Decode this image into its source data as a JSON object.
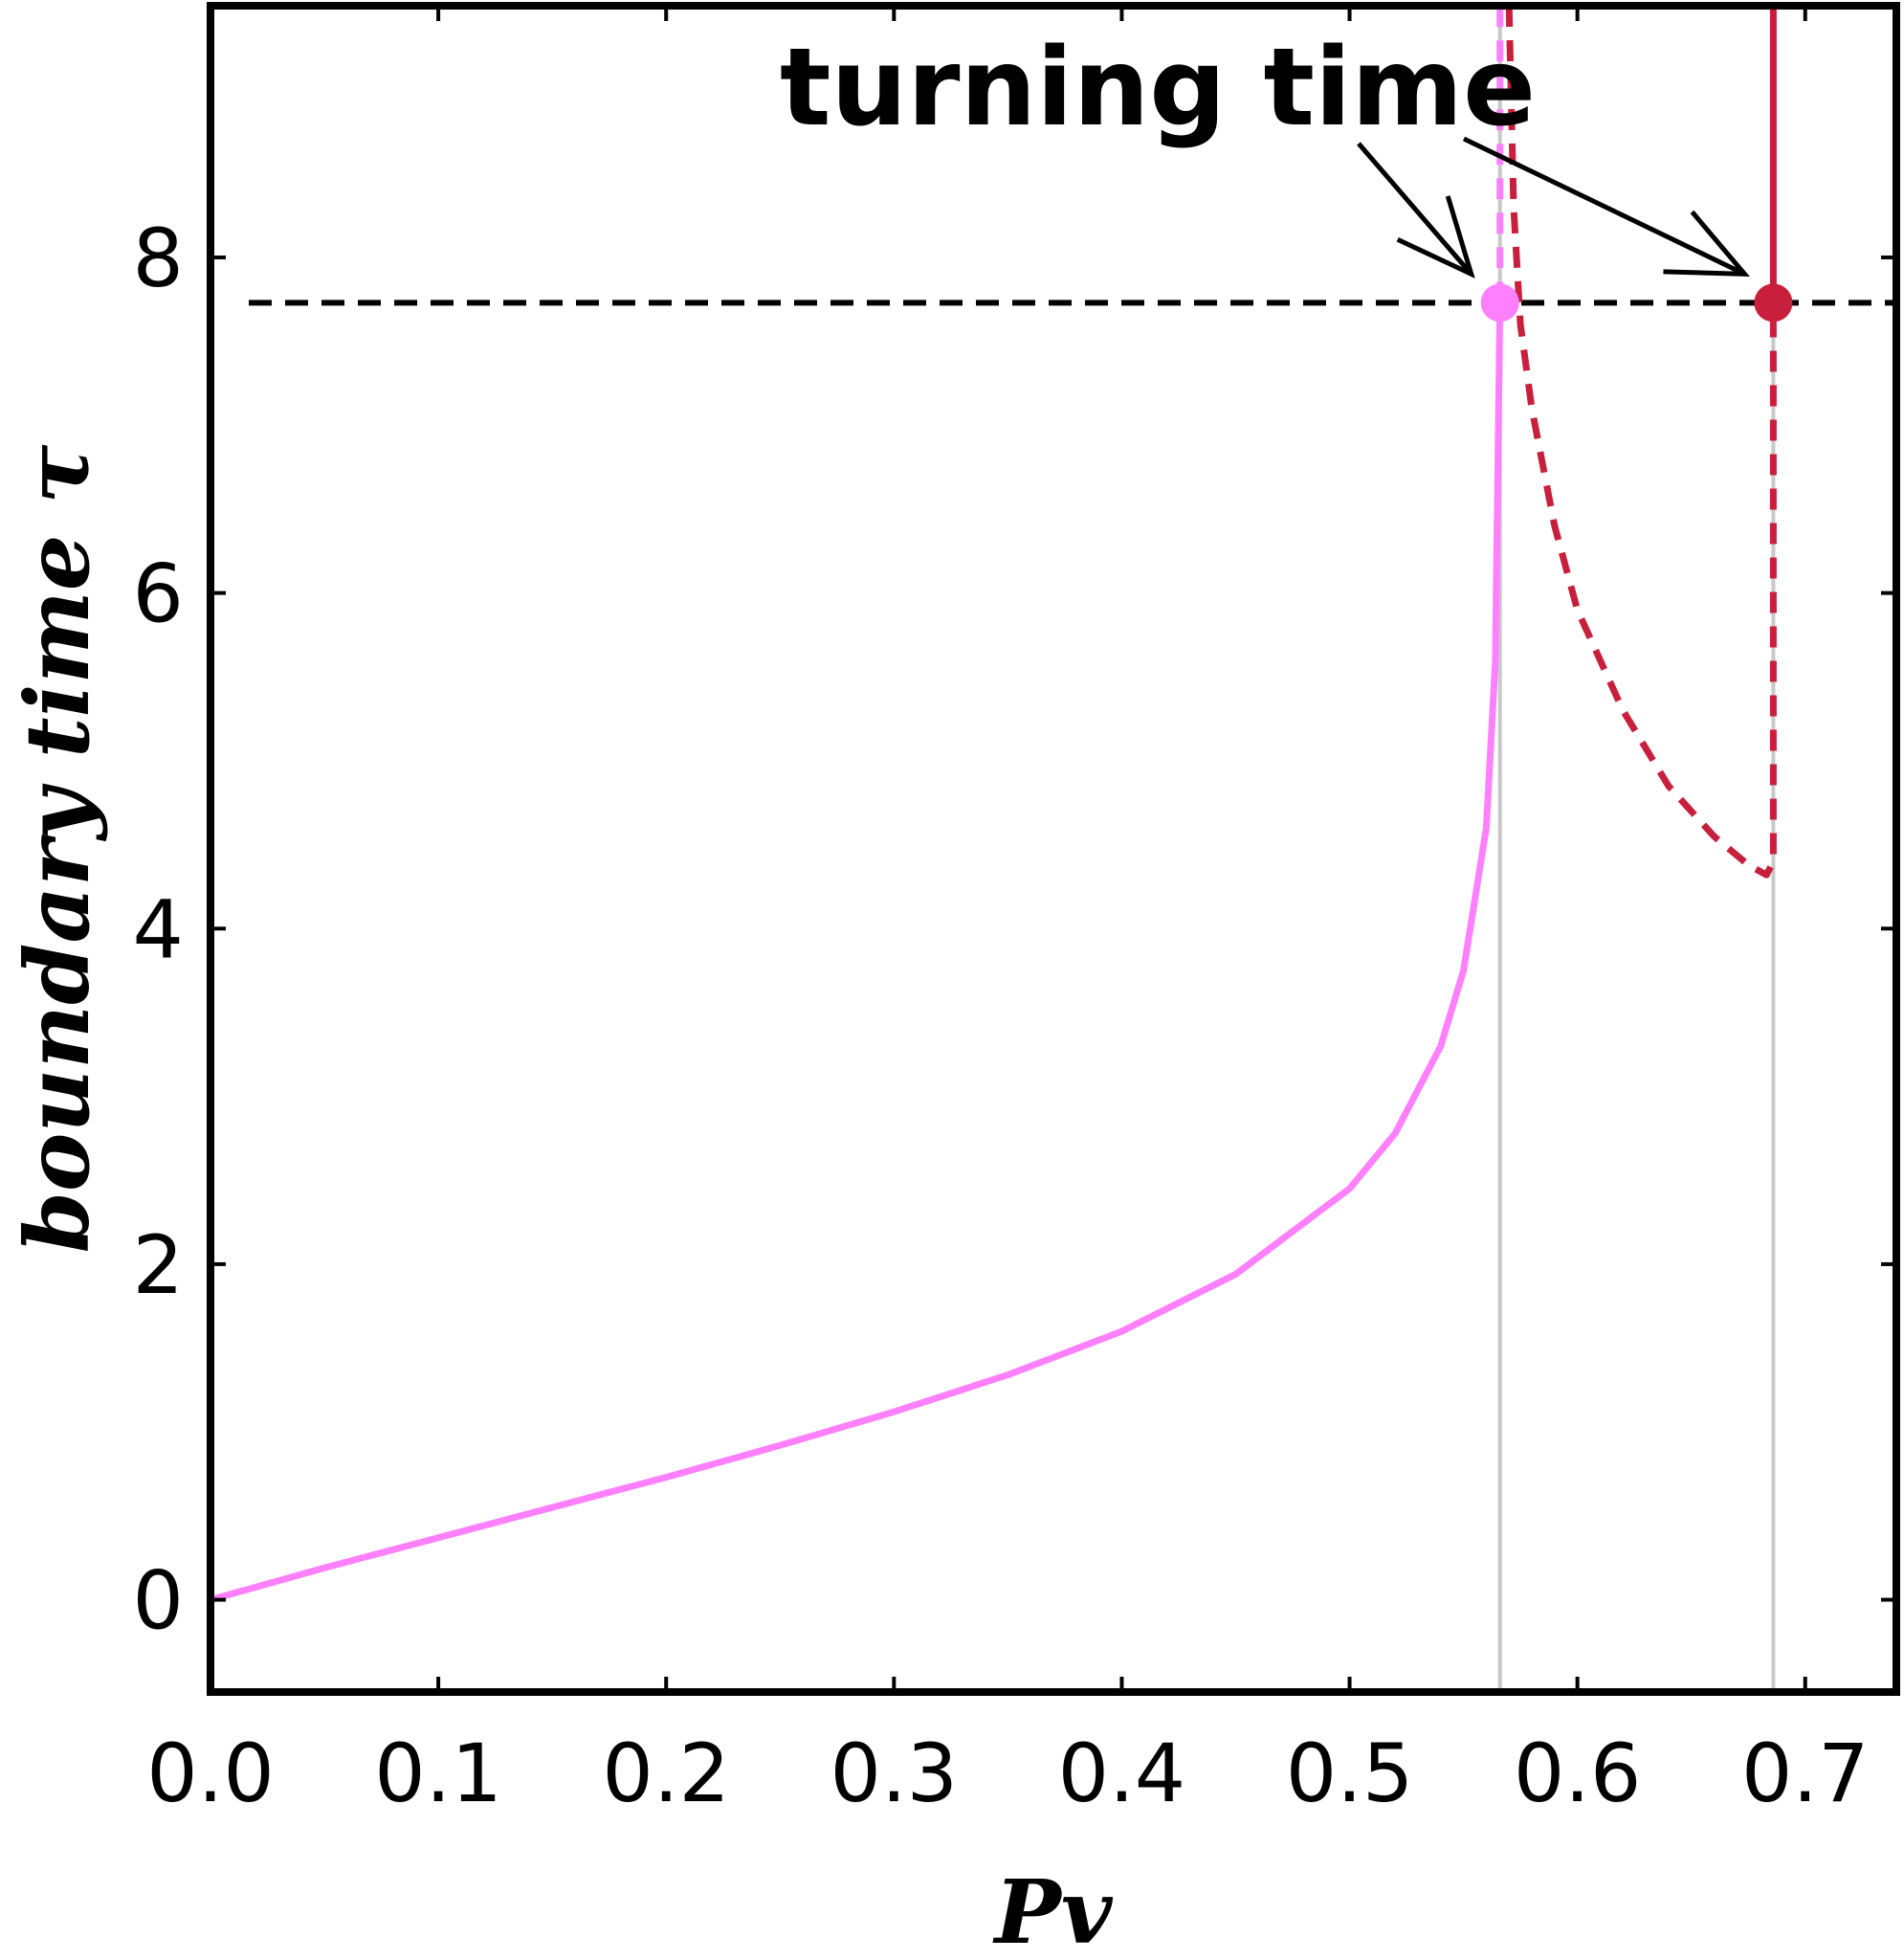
{
  "chart_data": {
    "type": "line",
    "xlabel": "Pv",
    "ylabel": "boundary time τ",
    "xlim": [
      0.0,
      0.74
    ],
    "ylim": [
      -0.55,
      9.5
    ],
    "x_ticks": [
      "0.0",
      "0.1",
      "0.2",
      "0.3",
      "0.4",
      "0.5",
      "0.6",
      "0.7"
    ],
    "y_ticks": [
      "0",
      "2",
      "4",
      "6",
      "8"
    ],
    "grid": false,
    "legend": "none",
    "reference_line": {
      "y": 7.73,
      "style": "dashed",
      "color": "#000000"
    },
    "vertical_lines": [
      0.566,
      0.686
    ],
    "series": [
      {
        "color": "#ff80ff",
        "style": "solid",
        "points": [
          [
            0.0,
            0.0
          ],
          [
            0.05,
            0.19
          ],
          [
            0.1,
            0.37
          ],
          [
            0.15,
            0.55
          ],
          [
            0.2,
            0.73
          ],
          [
            0.25,
            0.92
          ],
          [
            0.3,
            1.12
          ],
          [
            0.35,
            1.34
          ],
          [
            0.4,
            1.6
          ],
          [
            0.45,
            1.94
          ],
          [
            0.5,
            2.45
          ],
          [
            0.52,
            2.78
          ],
          [
            0.54,
            3.3
          ],
          [
            0.55,
            3.75
          ],
          [
            0.56,
            4.6
          ],
          [
            0.564,
            5.6
          ],
          [
            0.566,
            7.73
          ]
        ]
      },
      {
        "color": "#ff80ff",
        "style": "dashed",
        "points": [
          [
            0.566,
            7.73
          ],
          [
            0.566,
            9.5
          ]
        ]
      },
      {
        "color": "#c8203c",
        "style": "dashed",
        "points": [
          [
            0.57,
            9.5
          ],
          [
            0.572,
            8.3
          ],
          [
            0.575,
            7.6
          ],
          [
            0.58,
            7.1
          ],
          [
            0.59,
            6.4
          ],
          [
            0.6,
            5.9
          ],
          [
            0.62,
            5.3
          ],
          [
            0.64,
            4.85
          ],
          [
            0.66,
            4.55
          ],
          [
            0.675,
            4.38
          ],
          [
            0.683,
            4.32
          ],
          [
            0.686,
            4.4
          ],
          [
            0.686,
            5.5
          ],
          [
            0.686,
            7.73
          ]
        ]
      },
      {
        "color": "#c8203c",
        "style": "solid",
        "points": [
          [
            0.686,
            7.73
          ],
          [
            0.686,
            9.5
          ]
        ]
      }
    ],
    "markers": [
      {
        "x": 0.566,
        "y": 7.73,
        "color": "#ff80ff"
      },
      {
        "x": 0.686,
        "y": 7.73,
        "color": "#c8203c"
      }
    ],
    "annotations": [
      {
        "text": "turning time",
        "arrows_to": [
          [
            0.566,
            7.73
          ],
          [
            0.686,
            7.73
          ]
        ]
      }
    ]
  }
}
